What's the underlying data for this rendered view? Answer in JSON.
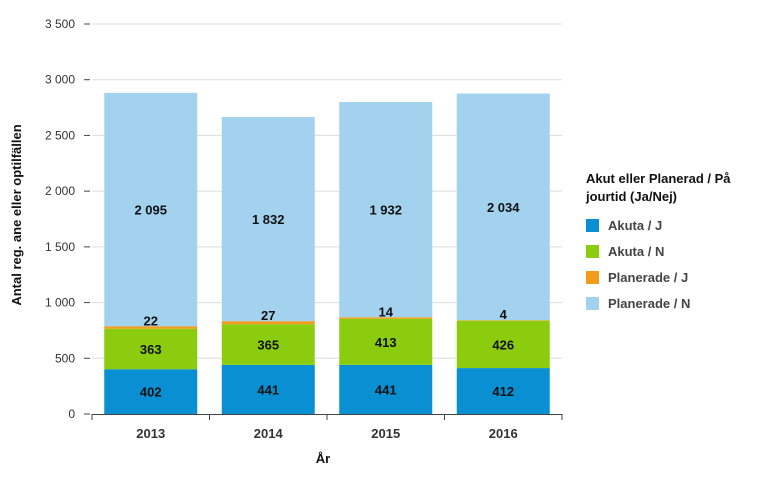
{
  "chart_data": {
    "type": "bar",
    "stacked": true,
    "xlabel": "År",
    "ylabel": "Antal reg. ane eller optilfällen",
    "ylim": [
      0,
      3500
    ],
    "yticks": [
      0,
      500,
      1000,
      1500,
      2000,
      2500,
      3000,
      3500
    ],
    "ytick_labels": [
      "0",
      "500",
      "1 000",
      "1 500",
      "2 000",
      "2 500",
      "3 000",
      "3 500"
    ],
    "grid": true,
    "legend_position": "right",
    "legend_title": "Akut eller Planerad / På jourtid (Ja/Nej)",
    "categories": [
      "2013",
      "2014",
      "2015",
      "2016"
    ],
    "series": [
      {
        "name": "Akuta / J",
        "color": "#0a8fd3",
        "values": [
          402,
          441,
          441,
          412
        ],
        "labels": [
          "402",
          "441",
          "441",
          "412"
        ]
      },
      {
        "name": "Akuta / N",
        "color": "#8ccc0e",
        "values": [
          363,
          365,
          413,
          426
        ],
        "labels": [
          "363",
          "365",
          "413",
          "426"
        ]
      },
      {
        "name": "Planerade / J",
        "color": "#f29b1d",
        "values": [
          22,
          27,
          14,
          4
        ],
        "labels": [
          "22",
          "27",
          "14",
          "4"
        ]
      },
      {
        "name": "Planerade / N",
        "color": "#a3d2ee",
        "values": [
          2095,
          1832,
          1932,
          2034
        ],
        "labels": [
          "2 095",
          "1 832",
          "1 932",
          "2 034"
        ]
      }
    ]
  }
}
